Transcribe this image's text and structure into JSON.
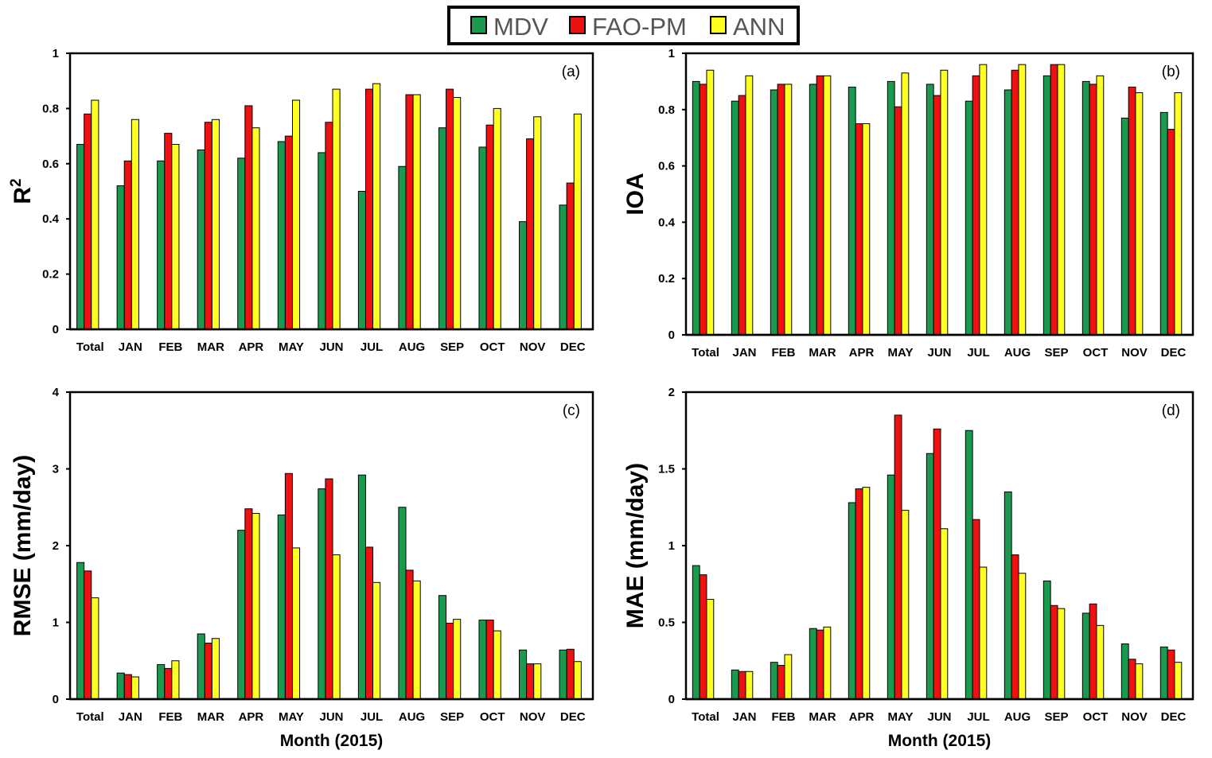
{
  "legend": {
    "placement": "top-center",
    "items": [
      {
        "name": "MDV",
        "color": "#1a9a4e"
      },
      {
        "name": "FAO-PM",
        "color": "#ee1111"
      },
      {
        "name": "ANN",
        "color": "#ffff22"
      }
    ]
  },
  "chart_data": [
    {
      "type": "bar",
      "panel_label": "(a)",
      "ylabel": "R",
      "ylabel_sup": "2",
      "xlabel": "",
      "ylim": [
        0,
        1
      ],
      "yticks": [
        "0",
        "0.2",
        "0.4",
        "0.6",
        "0.8",
        "1"
      ],
      "categories": [
        "Total",
        "JAN",
        "FEB",
        "MAR",
        "APR",
        "MAY",
        "JUN",
        "JUL",
        "AUG",
        "SEP",
        "OCT",
        "NOV",
        "DEC"
      ],
      "series": [
        {
          "name": "MDV",
          "values": [
            0.67,
            0.52,
            0.61,
            0.65,
            0.62,
            0.68,
            0.64,
            0.5,
            0.59,
            0.73,
            0.66,
            0.39,
            0.45
          ]
        },
        {
          "name": "FAO-PM",
          "values": [
            0.78,
            0.61,
            0.71,
            0.75,
            0.81,
            0.7,
            0.75,
            0.87,
            0.85,
            0.87,
            0.74,
            0.69,
            0.53
          ]
        },
        {
          "name": "ANN",
          "values": [
            0.83,
            0.76,
            0.67,
            0.76,
            0.73,
            0.83,
            0.87,
            0.89,
            0.85,
            0.84,
            0.8,
            0.77,
            0.78
          ]
        }
      ]
    },
    {
      "type": "bar",
      "panel_label": "(b)",
      "ylabel": "IOA",
      "ylabel_sup": "",
      "xlabel": "",
      "ylim": [
        0,
        1
      ],
      "yticks": [
        "0",
        "0.2",
        "0.4",
        "0.6",
        "0.8",
        "1"
      ],
      "categories": [
        "Total",
        "JAN",
        "FEB",
        "MAR",
        "APR",
        "MAY",
        "JUN",
        "JUL",
        "AUG",
        "SEP",
        "OCT",
        "NOV",
        "DEC"
      ],
      "series": [
        {
          "name": "MDV",
          "values": [
            0.9,
            0.83,
            0.87,
            0.89,
            0.88,
            0.9,
            0.89,
            0.83,
            0.87,
            0.92,
            0.9,
            0.77,
            0.79
          ]
        },
        {
          "name": "FAO-PM",
          "values": [
            0.89,
            0.85,
            0.89,
            0.92,
            0.75,
            0.81,
            0.85,
            0.92,
            0.94,
            0.96,
            0.89,
            0.88,
            0.73
          ]
        },
        {
          "name": "ANN",
          "values": [
            0.94,
            0.92,
            0.89,
            0.92,
            0.75,
            0.93,
            0.94,
            0.96,
            0.96,
            0.96,
            0.92,
            0.86,
            0.86
          ]
        }
      ]
    },
    {
      "type": "bar",
      "panel_label": "(c)",
      "ylabel": "RMSE (mm/day)",
      "ylabel_sup": "",
      "xlabel": "Month (2015)",
      "ylim": [
        0,
        4
      ],
      "yticks": [
        "0",
        "1",
        "2",
        "3",
        "4"
      ],
      "categories": [
        "Total",
        "JAN",
        "FEB",
        "MAR",
        "APR",
        "MAY",
        "JUN",
        "JUL",
        "AUG",
        "SEP",
        "OCT",
        "NOV",
        "DEC"
      ],
      "series": [
        {
          "name": "MDV",
          "values": [
            1.78,
            0.34,
            0.45,
            0.85,
            2.2,
            2.4,
            2.74,
            2.92,
            2.5,
            1.35,
            1.03,
            0.64,
            0.64
          ]
        },
        {
          "name": "FAO-PM",
          "values": [
            1.67,
            0.32,
            0.4,
            0.73,
            2.48,
            2.94,
            2.87,
            1.98,
            1.68,
            0.99,
            1.03,
            0.46,
            0.65
          ]
        },
        {
          "name": "ANN",
          "values": [
            1.32,
            0.29,
            0.5,
            0.79,
            2.42,
            1.97,
            1.88,
            1.52,
            1.54,
            1.04,
            0.89,
            0.46,
            0.49
          ]
        }
      ]
    },
    {
      "type": "bar",
      "panel_label": "(d)",
      "ylabel": "MAE (mm/day)",
      "ylabel_sup": "",
      "xlabel": "Month (2015)",
      "ylim": [
        0,
        2
      ],
      "yticks": [
        "0",
        "0.5",
        "1",
        "1.5",
        "2"
      ],
      "categories": [
        "Total",
        "JAN",
        "FEB",
        "MAR",
        "APR",
        "MAY",
        "JUN",
        "JUL",
        "AUG",
        "SEP",
        "OCT",
        "NOV",
        "DEC"
      ],
      "series": [
        {
          "name": "MDV",
          "values": [
            0.87,
            0.19,
            0.24,
            0.46,
            1.28,
            1.46,
            1.6,
            1.75,
            1.35,
            0.77,
            0.56,
            0.36,
            0.34
          ]
        },
        {
          "name": "FAO-PM",
          "values": [
            0.81,
            0.18,
            0.22,
            0.45,
            1.37,
            1.85,
            1.76,
            1.17,
            0.94,
            0.61,
            0.62,
            0.26,
            0.32
          ]
        },
        {
          "name": "ANN",
          "values": [
            0.65,
            0.18,
            0.29,
            0.47,
            1.38,
            1.23,
            1.11,
            0.86,
            0.82,
            0.59,
            0.48,
            0.23,
            0.24
          ]
        }
      ]
    }
  ]
}
